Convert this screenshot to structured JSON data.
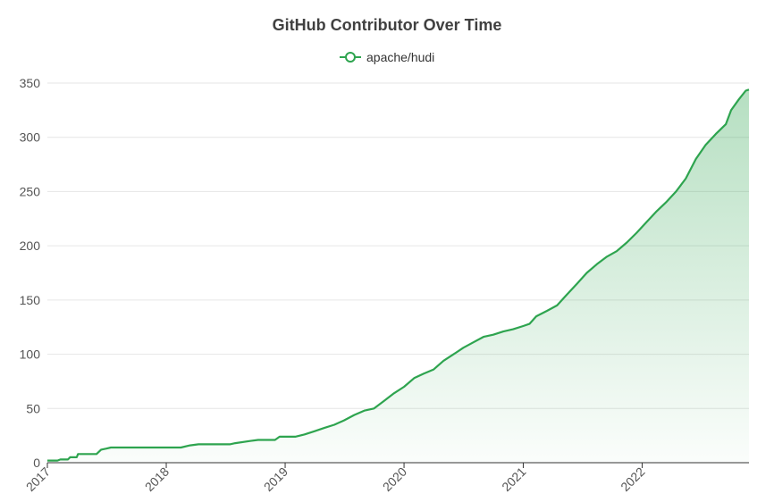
{
  "chart_data": {
    "type": "area",
    "title": "GitHub Contributor Over Time",
    "xlabel": "",
    "ylabel": "",
    "legend_position": "top-center",
    "grid": true,
    "series_color": "#2ea44f",
    "axis_color": "#333333",
    "grid_color": "#e6e6e6",
    "xlim": [
      "2017-01-01",
      "2022-11-25"
    ],
    "ylim": [
      0,
      350
    ],
    "y_ticks": [
      0,
      50,
      100,
      150,
      200,
      250,
      300,
      350
    ],
    "x_ticks": [
      "2017",
      "2018",
      "2019",
      "2020",
      "2021",
      "2022"
    ],
    "series": [
      {
        "name": "apache/hudi",
        "points": [
          [
            "2017-01-01",
            2
          ],
          [
            "2017-02-01",
            2
          ],
          [
            "2017-02-10",
            3
          ],
          [
            "2017-03-05",
            3
          ],
          [
            "2017-03-12",
            5
          ],
          [
            "2017-04-01",
            5
          ],
          [
            "2017-04-05",
            8
          ],
          [
            "2017-05-10",
            8
          ],
          [
            "2017-06-01",
            8
          ],
          [
            "2017-06-15",
            12
          ],
          [
            "2017-07-01",
            13
          ],
          [
            "2017-07-15",
            14
          ],
          [
            "2017-10-01",
            14
          ],
          [
            "2018-01-01",
            14
          ],
          [
            "2018-02-15",
            14
          ],
          [
            "2018-03-15",
            16
          ],
          [
            "2018-04-10",
            17
          ],
          [
            "2018-06-01",
            17
          ],
          [
            "2018-07-15",
            17
          ],
          [
            "2018-08-01",
            18
          ],
          [
            "2018-09-15",
            20
          ],
          [
            "2018-10-10",
            21
          ],
          [
            "2018-12-01",
            21
          ],
          [
            "2018-12-15",
            24
          ],
          [
            "2019-02-01",
            24
          ],
          [
            "2019-03-01",
            26
          ],
          [
            "2019-04-01",
            29
          ],
          [
            "2019-05-01",
            32
          ],
          [
            "2019-06-01",
            35
          ],
          [
            "2019-07-01",
            39
          ],
          [
            "2019-08-01",
            44
          ],
          [
            "2019-09-01",
            48
          ],
          [
            "2019-10-01",
            50
          ],
          [
            "2019-11-01",
            57
          ],
          [
            "2019-12-01",
            64
          ],
          [
            "2020-01-01",
            70
          ],
          [
            "2020-02-01",
            78
          ],
          [
            "2020-03-01",
            82
          ],
          [
            "2020-04-01",
            86
          ],
          [
            "2020-05-01",
            94
          ],
          [
            "2020-06-01",
            100
          ],
          [
            "2020-07-01",
            106
          ],
          [
            "2020-08-01",
            111
          ],
          [
            "2020-09-01",
            116
          ],
          [
            "2020-10-01",
            118
          ],
          [
            "2020-11-01",
            121
          ],
          [
            "2020-12-01",
            123
          ],
          [
            "2021-01-01",
            126
          ],
          [
            "2021-01-20",
            128
          ],
          [
            "2021-02-10",
            135
          ],
          [
            "2021-03-15",
            140
          ],
          [
            "2021-04-15",
            145
          ],
          [
            "2021-05-15",
            155
          ],
          [
            "2021-06-15",
            165
          ],
          [
            "2021-07-15",
            175
          ],
          [
            "2021-08-15",
            183
          ],
          [
            "2021-09-15",
            190
          ],
          [
            "2021-10-15",
            195
          ],
          [
            "2021-11-15",
            203
          ],
          [
            "2021-12-15",
            212
          ],
          [
            "2022-01-15",
            222
          ],
          [
            "2022-02-15",
            232
          ],
          [
            "2022-03-15",
            240
          ],
          [
            "2022-04-15",
            250
          ],
          [
            "2022-05-15",
            262
          ],
          [
            "2022-06-15",
            280
          ],
          [
            "2022-07-15",
            293
          ],
          [
            "2022-08-15",
            303
          ],
          [
            "2022-09-15",
            312
          ],
          [
            "2022-10-01",
            325
          ],
          [
            "2022-10-25",
            335
          ],
          [
            "2022-11-15",
            343
          ],
          [
            "2022-11-25",
            344
          ]
        ]
      }
    ]
  }
}
